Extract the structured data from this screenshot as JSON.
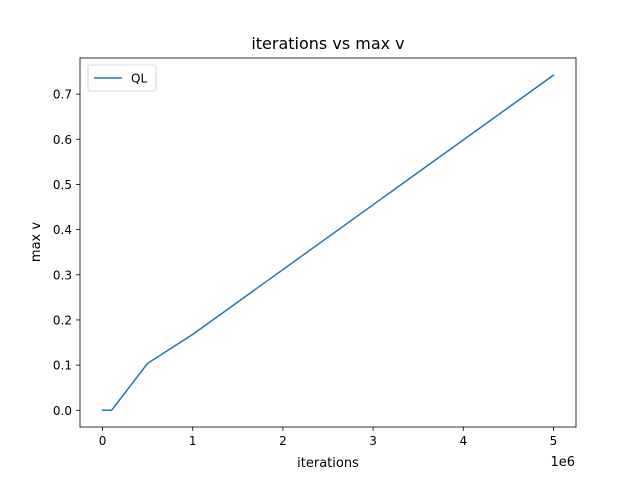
{
  "chart_data": {
    "type": "line",
    "title": "iterations vs max v",
    "xlabel": "iterations",
    "ylabel": "max v",
    "x_offset_text": "1e6",
    "x_scale_factor": 1000000,
    "xlim": [
      -250000,
      5250000
    ],
    "ylim": [
      -0.037,
      0.78
    ],
    "x_ticks": [
      0,
      1000000,
      2000000,
      3000000,
      4000000,
      5000000
    ],
    "x_tick_labels": [
      "0",
      "1",
      "2",
      "3",
      "4",
      "5"
    ],
    "y_ticks": [
      0.0,
      0.1,
      0.2,
      0.3,
      0.4,
      0.5,
      0.6,
      0.7
    ],
    "y_tick_labels": [
      "0.0",
      "0.1",
      "0.2",
      "0.3",
      "0.4",
      "0.5",
      "0.6",
      "0.7"
    ],
    "grid": false,
    "legend_position": "upper-left",
    "series": [
      {
        "name": "QL",
        "color": "#1f77b4",
        "x": [
          0,
          10000,
          100000,
          500000,
          1000000,
          5000000
        ],
        "y": [
          0.0,
          0.0,
          0.0,
          0.104,
          0.168,
          0.742
        ]
      }
    ]
  }
}
